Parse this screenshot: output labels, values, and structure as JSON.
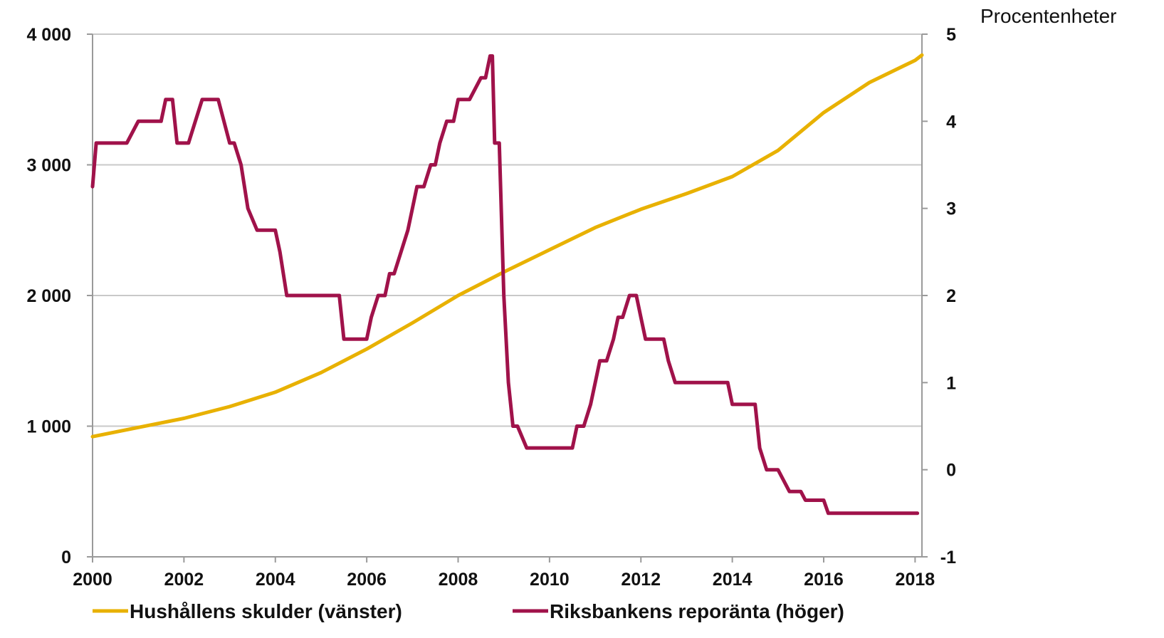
{
  "chart_data": {
    "type": "line",
    "title": "",
    "xlabel": "",
    "x_ticks": [
      "2000",
      "2002",
      "2004",
      "2006",
      "2008",
      "2010",
      "2012",
      "2014",
      "2016",
      "2018"
    ],
    "xlim": [
      2000,
      2018.15
    ],
    "left_axis": {
      "ylim": [
        0,
        4000
      ],
      "ticks": [
        0,
        1000,
        2000,
        3000,
        4000
      ],
      "tick_labels": [
        "0",
        "1 000",
        "2 000",
        "3 000",
        "4 000"
      ]
    },
    "right_axis": {
      "label": "Procentenheter",
      "ylim": [
        -1,
        5
      ],
      "ticks": [
        -1,
        0,
        1,
        2,
        3,
        4,
        5
      ],
      "tick_labels": [
        "-1",
        "0",
        "1",
        "2",
        "3",
        "4",
        "5"
      ]
    },
    "grid": "horizontal",
    "legend_position": "bottom",
    "series": [
      {
        "name": "Hushållens skulder (vänster)",
        "axis": "left",
        "color": "#E8B100",
        "x": [
          2000.0,
          2001.0,
          2002.0,
          2003.0,
          2004.0,
          2005.0,
          2006.0,
          2007.0,
          2008.0,
          2009.0,
          2010.0,
          2011.0,
          2012.0,
          2013.0,
          2014.0,
          2015.0,
          2016.0,
          2017.0,
          2018.0,
          2018.15
        ],
        "y": [
          920,
          990,
          1060,
          1150,
          1260,
          1410,
          1590,
          1790,
          2000,
          2180,
          2350,
          2520,
          2660,
          2780,
          2910,
          3110,
          3400,
          3630,
          3800,
          3840
        ]
      },
      {
        "name": "Riksbankens reporänta (höger)",
        "axis": "right",
        "color": "#A0124A",
        "x": [
          2000.0,
          2000.08,
          2000.17,
          2000.33,
          2000.5,
          2000.75,
          2001.0,
          2001.1,
          2001.25,
          2001.5,
          2001.6,
          2001.75,
          2001.85,
          2002.0,
          2002.1,
          2002.25,
          2002.4,
          2002.6,
          2002.75,
          2003.0,
          2003.1,
          2003.25,
          2003.4,
          2003.6,
          2003.75,
          2004.0,
          2004.1,
          2004.25,
          2004.5,
          2005.0,
          2005.4,
          2005.5,
          2005.6,
          2005.75,
          2006.0,
          2006.1,
          2006.25,
          2006.4,
          2006.5,
          2006.6,
          2006.75,
          2006.9,
          2007.0,
          2007.1,
          2007.25,
          2007.4,
          2007.5,
          2007.6,
          2007.75,
          2007.9,
          2008.0,
          2008.1,
          2008.25,
          2008.5,
          2008.6,
          2008.7,
          2008.75,
          2008.8,
          2008.9,
          2009.0,
          2009.1,
          2009.2,
          2009.3,
          2009.5,
          2009.6,
          2010.0,
          2010.5,
          2010.6,
          2010.75,
          2010.9,
          2011.0,
          2011.1,
          2011.25,
          2011.4,
          2011.5,
          2011.6,
          2011.75,
          2011.9,
          2012.0,
          2012.1,
          2012.25,
          2012.5,
          2012.6,
          2012.75,
          2012.9,
          2013.0,
          2013.5,
          2013.9,
          2014.0,
          2014.5,
          2014.6,
          2014.75,
          2014.9,
          2015.0,
          2015.1,
          2015.25,
          2015.5,
          2015.6,
          2016.0,
          2016.1,
          2016.5,
          2017.0,
          2017.5,
          2018.0,
          2018.05
        ],
        "y": [
          3.25,
          3.75,
          3.75,
          3.75,
          3.75,
          3.75,
          4.0,
          4.0,
          4.0,
          4.0,
          4.25,
          4.25,
          3.75,
          3.75,
          3.75,
          4.0,
          4.25,
          4.25,
          4.25,
          3.75,
          3.75,
          3.5,
          3.0,
          2.75,
          2.75,
          2.75,
          2.5,
          2.0,
          2.0,
          2.0,
          2.0,
          1.5,
          1.5,
          1.5,
          1.5,
          1.75,
          2.0,
          2.0,
          2.25,
          2.25,
          2.5,
          2.75,
          3.0,
          3.25,
          3.25,
          3.5,
          3.5,
          3.75,
          4.0,
          4.0,
          4.25,
          4.25,
          4.25,
          4.5,
          4.5,
          4.75,
          4.75,
          3.75,
          3.75,
          2.0,
          1.0,
          0.5,
          0.5,
          0.25,
          0.25,
          0.25,
          0.25,
          0.5,
          0.5,
          0.75,
          1.0,
          1.25,
          1.25,
          1.5,
          1.75,
          1.75,
          2.0,
          2.0,
          1.75,
          1.5,
          1.5,
          1.5,
          1.25,
          1.0,
          1.0,
          1.0,
          1.0,
          1.0,
          0.75,
          0.75,
          0.25,
          0.0,
          0.0,
          0.0,
          -0.1,
          -0.25,
          -0.25,
          -0.35,
          -0.35,
          -0.5,
          -0.5,
          -0.5,
          -0.5,
          -0.5,
          -0.5
        ]
      }
    ]
  }
}
